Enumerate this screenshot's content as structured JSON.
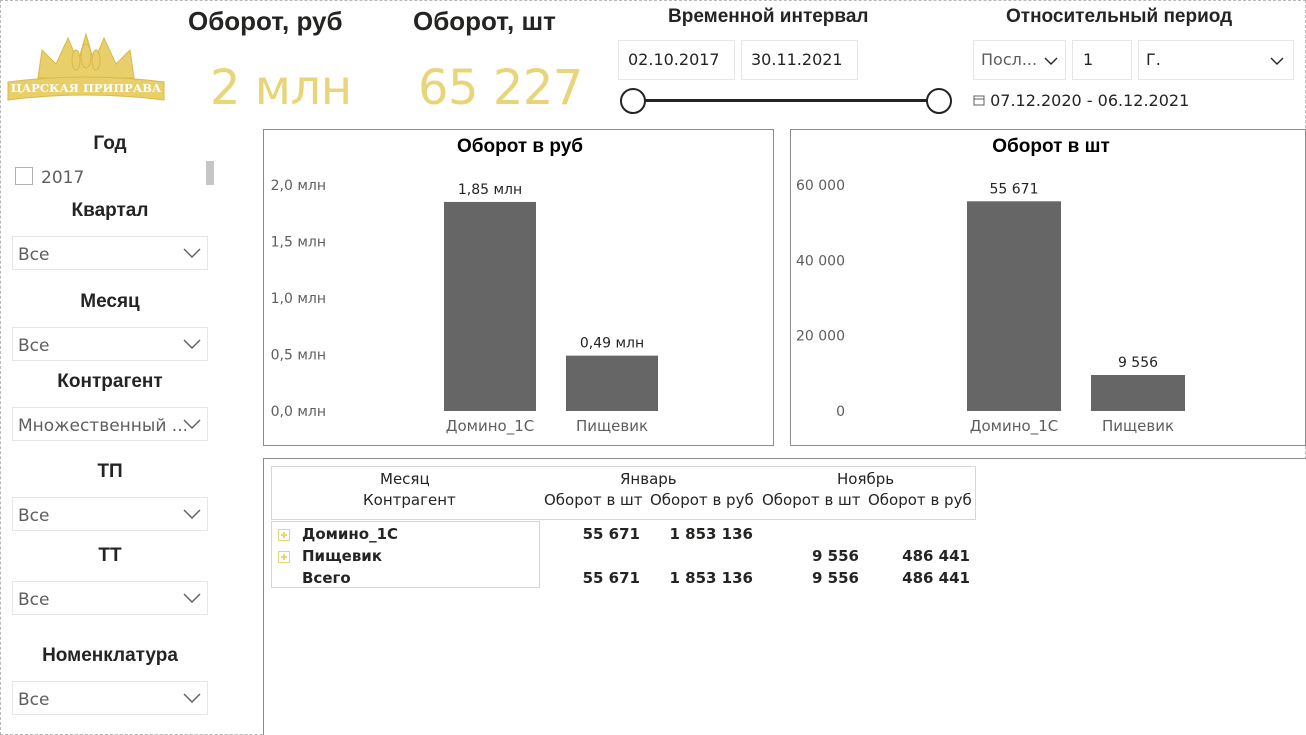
{
  "brand": {
    "logo_text": "ЦАРСКАЯ ПРИПРАВА"
  },
  "kpi": {
    "revenue_title": "Оборот, руб",
    "revenue_value": "2 млн",
    "units_title": "Оборот, шт",
    "units_value": "65 227",
    "value_color": "#e8d57a"
  },
  "time_range": {
    "title": "Временной интервал",
    "start": "02.10.2017",
    "end": "30.11.2021",
    "slider_start_fraction": 0.0,
    "slider_end_fraction": 1.0
  },
  "relative_period": {
    "title": "Относительный период",
    "mode": "Посл...",
    "count": "1",
    "unit": "Г.",
    "range_text": "07.12.2020 - 06.12.2021"
  },
  "slicers": {
    "year": {
      "title": "Год",
      "items": [
        "2017"
      ]
    },
    "quarter": {
      "title": "Квартал",
      "value": "Все"
    },
    "month": {
      "title": "Месяц",
      "value": "Все"
    },
    "counterparty": {
      "title": "Контрагент",
      "value": "Множественный ..."
    },
    "tp": {
      "title": "ТП",
      "value": "Все"
    },
    "tt": {
      "title": "ТТ",
      "value": "Все"
    },
    "nomenclature": {
      "title": "Номенклатура",
      "value": "Все"
    }
  },
  "chart_data": [
    {
      "type": "bar",
      "title": "Оборот в руб",
      "categories": [
        "Домино_1С",
        "Пищевик"
      ],
      "values": [
        1.85,
        0.49
      ],
      "value_labels": [
        "1,85 млн",
        "0,49 млн"
      ],
      "ylim": [
        0,
        2.0
      ],
      "yticks": [
        0,
        0.5,
        1.0,
        1.5,
        2.0
      ],
      "ytick_labels": [
        "0,0 млн",
        "0,5 млн",
        "1,0 млн",
        "1,5 млн",
        "2,0 млн"
      ],
      "bar_color": "#666666",
      "grid": false
    },
    {
      "type": "bar",
      "title": "Оборот в шт",
      "categories": [
        "Домино_1С",
        "Пищевик"
      ],
      "values": [
        55671,
        9556
      ],
      "value_labels": [
        "55 671",
        "9 556"
      ],
      "ylim": [
        0,
        60000
      ],
      "yticks": [
        0,
        20000,
        40000,
        60000
      ],
      "ytick_labels": [
        "0",
        "20 000",
        "40 000",
        "60 000"
      ],
      "bar_color": "#666666",
      "grid": false
    }
  ],
  "matrix": {
    "col_header_row1": "Месяц",
    "col_header_row2": "Контрагент",
    "months": [
      "Январь",
      "Ноябрь"
    ],
    "measures": [
      "Оборот в шт",
      "Оборот в руб",
      "Оборот в шт",
      "Оборот в руб"
    ],
    "rows": [
      {
        "label": "Домино_1С",
        "values": [
          "55 671",
          "1 853 136",
          "",
          ""
        ]
      },
      {
        "label": "Пищевик",
        "values": [
          "",
          "",
          "9 556",
          "486 441"
        ]
      },
      {
        "label": "Всего",
        "values": [
          "55 671",
          "1 853 136",
          "9 556",
          "486 441"
        ]
      }
    ]
  }
}
